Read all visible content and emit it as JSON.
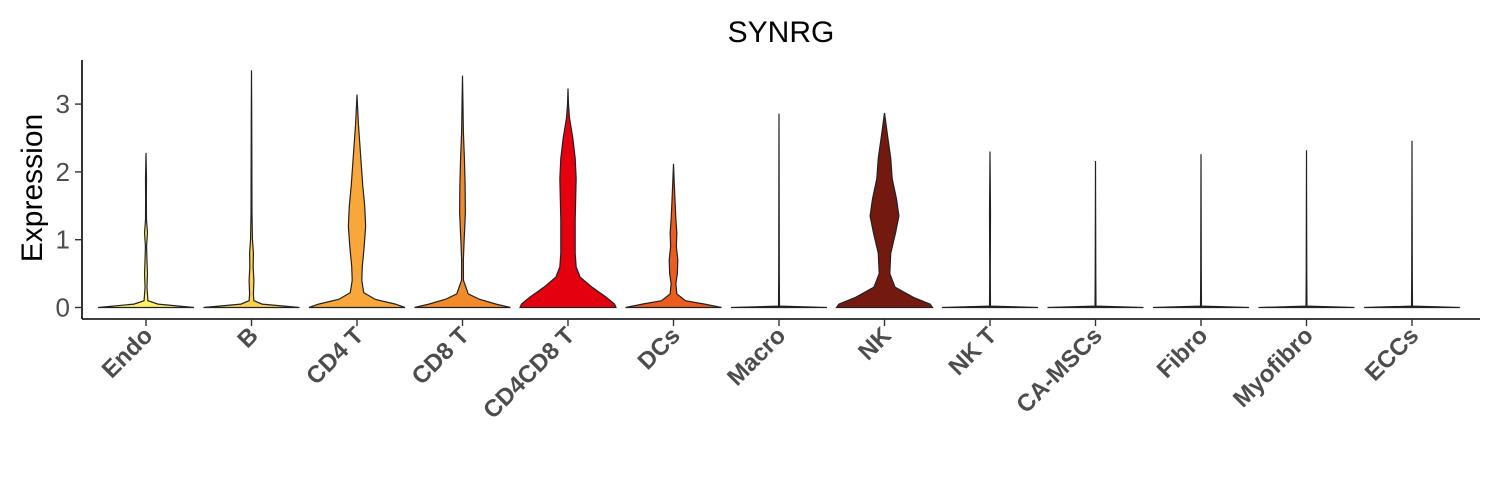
{
  "chart_data": {
    "type": "violin",
    "title": "SYNRG",
    "ylabel": "Expression",
    "xlabel": "",
    "ylim": [
      -0.15,
      3.65
    ],
    "yticks": [
      0,
      1,
      2,
      3
    ],
    "grid": false,
    "legend": "none",
    "categories": [
      {
        "name": "Endo",
        "color": "#FFF161",
        "max": 2.28,
        "density": [
          [
            0,
            1
          ],
          [
            0.05,
            0.25
          ],
          [
            0.1,
            0.04
          ],
          [
            0.3,
            0.02
          ],
          [
            0.5,
            0.03
          ],
          [
            0.7,
            0.02
          ],
          [
            0.9,
            0.012
          ],
          [
            1.1,
            0.03
          ],
          [
            1.3,
            0.01
          ],
          [
            1.6,
            0.008
          ],
          [
            1.9,
            0.01
          ],
          [
            2.28,
            0
          ]
        ]
      },
      {
        "name": "B",
        "color": "#FCD24A",
        "max": 3.5,
        "density": [
          [
            0,
            1
          ],
          [
            0.05,
            0.22
          ],
          [
            0.1,
            0.05
          ],
          [
            0.2,
            0.04
          ],
          [
            0.4,
            0.05
          ],
          [
            0.6,
            0.035
          ],
          [
            0.8,
            0.04
          ],
          [
            1.0,
            0.02
          ],
          [
            1.4,
            0.01
          ],
          [
            2.0,
            0.008
          ],
          [
            3.0,
            0.004
          ],
          [
            3.5,
            0
          ]
        ]
      },
      {
        "name": "CD4 T",
        "color": "#F9A73B",
        "max": 3.14,
        "density": [
          [
            0,
            1
          ],
          [
            0.05,
            0.8
          ],
          [
            0.12,
            0.38
          ],
          [
            0.22,
            0.14
          ],
          [
            0.4,
            0.1
          ],
          [
            0.6,
            0.11
          ],
          [
            0.9,
            0.15
          ],
          [
            1.2,
            0.18
          ],
          [
            1.5,
            0.16
          ],
          [
            1.8,
            0.12
          ],
          [
            2.1,
            0.09
          ],
          [
            2.4,
            0.06
          ],
          [
            2.7,
            0.03
          ],
          [
            3.14,
            0
          ]
        ]
      },
      {
        "name": "CD8 T",
        "color": "#F38A2A",
        "max": 3.42,
        "density": [
          [
            0,
            1
          ],
          [
            0.05,
            0.7
          ],
          [
            0.12,
            0.36
          ],
          [
            0.2,
            0.12
          ],
          [
            0.4,
            0.02
          ],
          [
            0.7,
            0.018
          ],
          [
            1.0,
            0.035
          ],
          [
            1.4,
            0.06
          ],
          [
            1.8,
            0.055
          ],
          [
            2.2,
            0.04
          ],
          [
            2.6,
            0.018
          ],
          [
            3.0,
            0.01
          ],
          [
            3.42,
            0
          ]
        ]
      },
      {
        "name": "CD4CD8 T",
        "color": "#E5000F",
        "max": 3.23,
        "density": [
          [
            0,
            1
          ],
          [
            0.05,
            0.97
          ],
          [
            0.15,
            0.8
          ],
          [
            0.3,
            0.5
          ],
          [
            0.45,
            0.25
          ],
          [
            0.6,
            0.17
          ],
          [
            0.8,
            0.15
          ],
          [
            1.0,
            0.15
          ],
          [
            1.3,
            0.15
          ],
          [
            1.6,
            0.16
          ],
          [
            1.9,
            0.17
          ],
          [
            2.2,
            0.15
          ],
          [
            2.5,
            0.1
          ],
          [
            2.8,
            0.03
          ],
          [
            3.0,
            0.01
          ],
          [
            3.23,
            0
          ]
        ]
      },
      {
        "name": "DCs",
        "color": "#EB5C1E",
        "max": 2.12,
        "density": [
          [
            0,
            1
          ],
          [
            0.05,
            0.65
          ],
          [
            0.1,
            0.25
          ],
          [
            0.2,
            0.07
          ],
          [
            0.35,
            0.05
          ],
          [
            0.5,
            0.08
          ],
          [
            0.7,
            0.09
          ],
          [
            0.9,
            0.06
          ],
          [
            1.1,
            0.07
          ],
          [
            1.3,
            0.05
          ],
          [
            1.6,
            0.03
          ],
          [
            1.9,
            0.012
          ],
          [
            2.12,
            0
          ]
        ]
      },
      {
        "name": "Macro",
        "color": "#DDDDDD",
        "max": 2.86,
        "density": [
          [
            0,
            1
          ],
          [
            0.02,
            0.01
          ],
          [
            0.5,
            0.006
          ],
          [
            2.86,
            0
          ]
        ]
      },
      {
        "name": "NK",
        "color": "#741910",
        "max": 2.87,
        "density": [
          [
            0,
            1
          ],
          [
            0.05,
            0.95
          ],
          [
            0.15,
            0.6
          ],
          [
            0.3,
            0.22
          ],
          [
            0.5,
            0.11
          ],
          [
            0.8,
            0.13
          ],
          [
            1.1,
            0.23
          ],
          [
            1.35,
            0.3
          ],
          [
            1.6,
            0.25
          ],
          [
            1.9,
            0.16
          ],
          [
            2.2,
            0.13
          ],
          [
            2.5,
            0.07
          ],
          [
            2.87,
            0
          ]
        ]
      },
      {
        "name": "NK T",
        "color": "#DDDDDD",
        "max": 2.3,
        "density": [
          [
            0,
            1
          ],
          [
            0.02,
            0.01
          ],
          [
            0.5,
            0.006
          ],
          [
            1.4,
            0.01
          ],
          [
            2.3,
            0
          ]
        ]
      },
      {
        "name": "CA-MSCs",
        "color": "#DDDDDD",
        "max": 2.16,
        "density": [
          [
            0,
            1
          ],
          [
            0.02,
            0.01
          ],
          [
            0.5,
            0.006
          ],
          [
            2.16,
            0
          ]
        ]
      },
      {
        "name": "Fibro",
        "color": "#DDDDDD",
        "max": 2.26,
        "density": [
          [
            0,
            1
          ],
          [
            0.02,
            0.01
          ],
          [
            0.5,
            0.006
          ],
          [
            2.26,
            0
          ]
        ]
      },
      {
        "name": "Myofibro",
        "color": "#DDDDDD",
        "max": 2.32,
        "density": [
          [
            0,
            1
          ],
          [
            0.02,
            0.01
          ],
          [
            0.5,
            0.006
          ],
          [
            2.32,
            0
          ]
        ]
      },
      {
        "name": "ECCs",
        "color": "#DDDDDD",
        "max": 2.46,
        "density": [
          [
            0,
            1
          ],
          [
            0.02,
            0.01
          ],
          [
            0.5,
            0.006
          ],
          [
            2.46,
            0
          ]
        ]
      }
    ]
  }
}
